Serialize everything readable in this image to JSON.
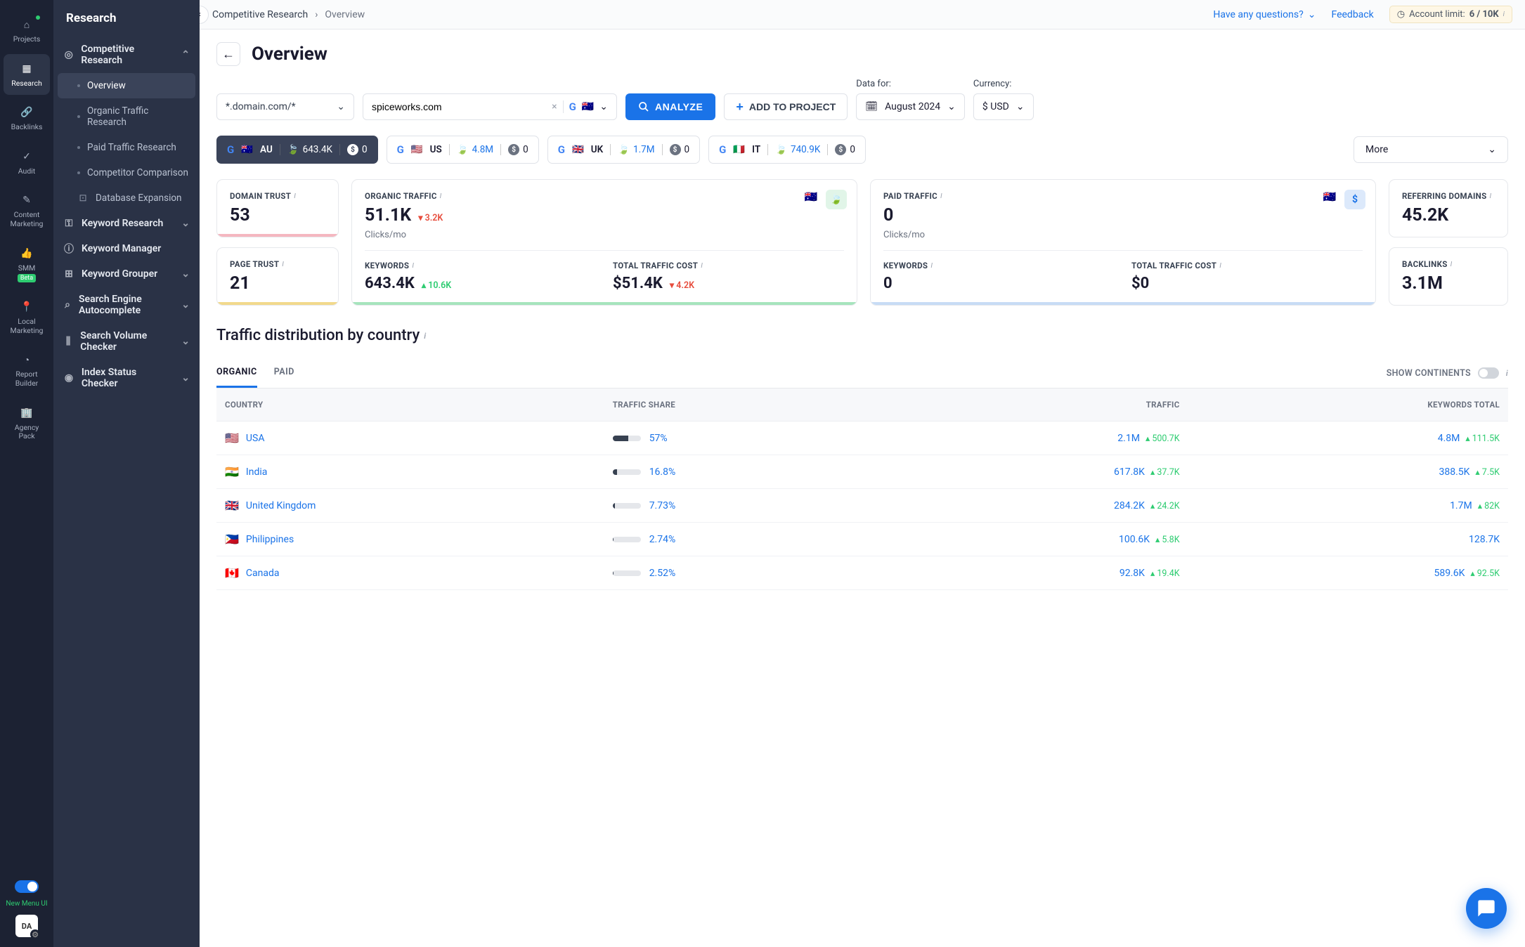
{
  "rail": {
    "items": [
      {
        "label": "Projects",
        "icon": "home"
      },
      {
        "label": "Research",
        "icon": "research",
        "active": true
      },
      {
        "label": "Backlinks",
        "icon": "link"
      },
      {
        "label": "Audit",
        "icon": "check"
      },
      {
        "label": "Content Marketing",
        "icon": "edit"
      },
      {
        "label": "SMM",
        "icon": "thumb",
        "beta": "Beta"
      },
      {
        "label": "Local Marketing",
        "icon": "pin"
      },
      {
        "label": "Report Builder",
        "icon": "pie"
      },
      {
        "label": "Agency Pack",
        "icon": "building"
      }
    ],
    "newui": "New Menu UI",
    "da": "DA"
  },
  "sidebar": {
    "title": "Research",
    "tree": {
      "compResearch": "Competitive Research",
      "overview": "Overview",
      "organic": "Organic Traffic Research",
      "paid": "Paid Traffic Research",
      "competitor": "Competitor Comparison",
      "dbExpand": "Database Expansion",
      "kwResearch": "Keyword Research",
      "kwManager": "Keyword Manager",
      "kwGrouper": "Keyword Grouper",
      "seAuto": "Search Engine Autocomplete",
      "svChecker": "Search Volume Checker",
      "indexStatus": "Index Status Checker"
    }
  },
  "topbar": {
    "crumb1": "Competitive Research",
    "crumb2": "Overview",
    "questions": "Have any questions?",
    "feedback": "Feedback",
    "limitLabel": "Account limit:",
    "limitVal": "6 / 10K"
  },
  "page": {
    "title": "Overview",
    "filter": "*.domain.com/*",
    "domain": "spiceworks.com",
    "analyze": "ANALYZE",
    "addToProject": "ADD TO PROJECT",
    "dataForLabel": "Data for:",
    "dataFor": "August 2024",
    "currencyLabel": "Currency:",
    "currency": "$ USD"
  },
  "chips": [
    {
      "cc": "AU",
      "flag": "🇦🇺",
      "kw": "643.4K",
      "paid": "0",
      "active": true
    },
    {
      "cc": "US",
      "flag": "🇺🇸",
      "kw": "4.8M",
      "paid": "0"
    },
    {
      "cc": "UK",
      "flag": "🇬🇧",
      "kw": "1.7M",
      "paid": "0"
    },
    {
      "cc": "IT",
      "flag": "🇮🇹",
      "kw": "740.9K",
      "paid": "0"
    }
  ],
  "chipsMore": "More",
  "cards": {
    "domainTrust": {
      "title": "DOMAIN TRUST",
      "value": "53",
      "bar": "#f5b7c0"
    },
    "pageTrust": {
      "title": "PAGE TRUST",
      "value": "21",
      "bar": "#f2d98c"
    },
    "organic": {
      "title": "ORGANIC TRAFFIC",
      "value": "51.1K",
      "delta": "3.2K",
      "dir": "down",
      "sub": "Clicks/mo",
      "flag": "🇦🇺",
      "kwTitle": "KEYWORDS",
      "kwVal": "643.4K",
      "kwDelta": "10.6K",
      "costTitle": "TOTAL TRAFFIC COST",
      "costVal": "$51.4K",
      "costDelta": "4.2K",
      "bar": "#a6e4bd"
    },
    "paid": {
      "title": "PAID TRAFFIC",
      "value": "0",
      "sub": "Clicks/mo",
      "flag": "🇦🇺",
      "kwTitle": "KEYWORDS",
      "kwVal": "0",
      "costTitle": "TOTAL TRAFFIC COST",
      "costVal": "$0",
      "bar": "#c7dcf5"
    },
    "refDom": {
      "title": "REFERRING DOMAINS",
      "value": "45.2K"
    },
    "backlinks": {
      "title": "BACKLINKS",
      "value": "3.1M"
    }
  },
  "dist": {
    "title": "Traffic distribution by country",
    "tabs": {
      "organic": "ORGANIC",
      "paid": "PAID"
    },
    "showCont": "SHOW CONTINENTS",
    "cols": {
      "country": "COUNTRY",
      "share": "TRAFFIC SHARE",
      "traffic": "TRAFFIC",
      "kw": "KEYWORDS TOTAL"
    },
    "rows": [
      {
        "flag": "🇺🇸",
        "name": "USA",
        "sharePct": "57%",
        "shareW": 57,
        "traffic": "2.1M",
        "tChg": "500.7K",
        "kw": "4.8M",
        "kChg": "111.5K"
      },
      {
        "flag": "🇮🇳",
        "name": "India",
        "sharePct": "16.8%",
        "shareW": 17,
        "traffic": "617.8K",
        "tChg": "37.7K",
        "kw": "388.5K",
        "kChg": "7.5K"
      },
      {
        "flag": "🇬🇧",
        "name": "United Kingdom",
        "sharePct": "7.73%",
        "shareW": 8,
        "traffic": "284.2K",
        "tChg": "24.2K",
        "kw": "1.7M",
        "kChg": "82K"
      },
      {
        "flag": "🇵🇭",
        "name": "Philippines",
        "sharePct": "2.74%",
        "shareW": 3,
        "traffic": "100.6K",
        "tChg": "5.8K",
        "kw": "128.7K",
        "kChg": ""
      },
      {
        "flag": "🇨🇦",
        "name": "Canada",
        "sharePct": "2.52%",
        "shareW": 3,
        "traffic": "92.8K",
        "tChg": "19.4K",
        "kw": "589.6K",
        "kChg": "92.5K"
      }
    ]
  },
  "colors": {
    "primary": "#1a73e8",
    "green": "#2ecc71",
    "red": "#e74c3c",
    "railBg": "#1c2233",
    "sidebarBg": "#2a3246"
  }
}
